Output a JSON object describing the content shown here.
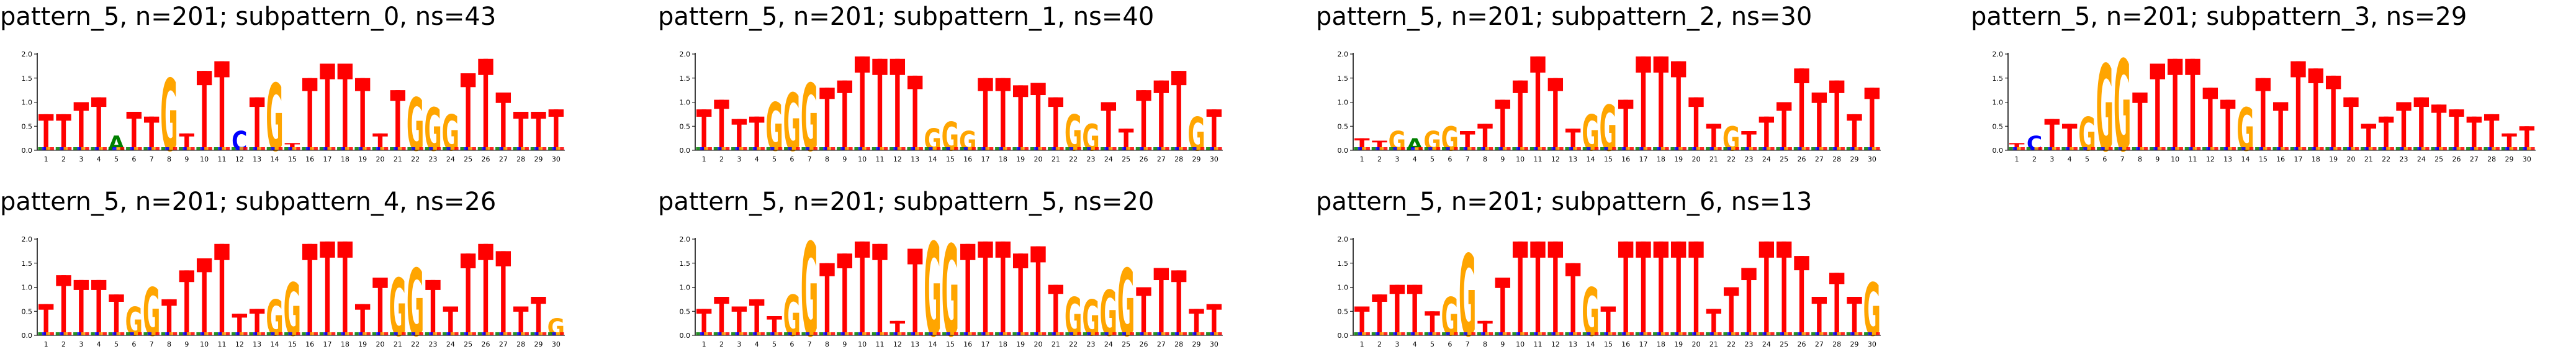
{
  "chart_data": [
    {
      "type": "sequence-logo",
      "title": "pattern_5, n=201; subpattern_0, ns=43",
      "yticks": [
        "0.0",
        "0.5",
        "1.0",
        "1.5",
        "2.0"
      ],
      "ylim": [
        0,
        2.0
      ],
      "positions": [
        "1",
        "2",
        "3",
        "4",
        "5",
        "6",
        "7",
        "8",
        "9",
        "10",
        "11",
        "12",
        "13",
        "14",
        "15",
        "16",
        "17",
        "18",
        "19",
        "20",
        "21",
        "22",
        "23",
        "24",
        "25",
        "26",
        "27",
        "28",
        "29",
        "30"
      ],
      "letters": [
        "T",
        "T",
        "T",
        "T",
        "A",
        "T",
        "T",
        "G",
        "T",
        "T",
        "T",
        "C",
        "T",
        "G",
        "T",
        "T",
        "T",
        "T",
        "T",
        "T",
        "T",
        "G",
        "G",
        "G",
        "T",
        "T",
        "T",
        "T",
        "T",
        "T"
      ],
      "values": [
        0.75,
        0.75,
        1.0,
        1.1,
        0.3,
        0.8,
        0.7,
        1.5,
        0.35,
        1.65,
        1.85,
        0.4,
        1.1,
        1.4,
        0.15,
        1.5,
        1.8,
        1.8,
        1.5,
        0.35,
        1.25,
        1.1,
        0.9,
        0.75,
        1.6,
        1.9,
        1.2,
        0.8,
        0.8,
        0.85
      ]
    },
    {
      "type": "sequence-logo",
      "title": "pattern_5, n=201; subpattern_1, ns=40",
      "yticks": [
        "0.0",
        "0.5",
        "1.0",
        "1.5",
        "2.0"
      ],
      "ylim": [
        0,
        2.0
      ],
      "positions": [
        "1",
        "2",
        "3",
        "4",
        "5",
        "6",
        "7",
        "8",
        "9",
        "10",
        "11",
        "12",
        "13",
        "14",
        "15",
        "16",
        "17",
        "18",
        "19",
        "20",
        "21",
        "22",
        "23",
        "24",
        "25",
        "26",
        "27",
        "28",
        "29",
        "30"
      ],
      "letters": [
        "T",
        "T",
        "T",
        "T",
        "G",
        "G",
        "G",
        "T",
        "T",
        "T",
        "T",
        "T",
        "T",
        "G",
        "G",
        "G",
        "T",
        "T",
        "T",
        "T",
        "T",
        "G",
        "G",
        "T",
        "T",
        "T",
        "T",
        "T",
        "G",
        "T"
      ],
      "values": [
        0.85,
        1.05,
        0.65,
        0.7,
        1.0,
        1.2,
        1.4,
        1.3,
        1.45,
        1.95,
        1.9,
        1.9,
        1.55,
        0.45,
        0.6,
        0.4,
        1.5,
        1.5,
        1.35,
        1.4,
        1.1,
        0.75,
        0.55,
        1.0,
        0.45,
        1.25,
        1.45,
        1.65,
        0.7,
        0.85
      ]
    },
    {
      "type": "sequence-logo",
      "title": "pattern_5, n=201; subpattern_2, ns=30",
      "yticks": [
        "0.0",
        "0.5",
        "1.0",
        "1.5",
        "2.0"
      ],
      "ylim": [
        0,
        2.0
      ],
      "positions": [
        "1",
        "2",
        "3",
        "4",
        "5",
        "6",
        "7",
        "8",
        "9",
        "10",
        "11",
        "12",
        "13",
        "14",
        "15",
        "16",
        "17",
        "18",
        "19",
        "20",
        "21",
        "22",
        "23",
        "24",
        "25",
        "26",
        "27",
        "28",
        "29",
        "30"
      ],
      "letters": [
        "T",
        "T",
        "G",
        "A",
        "G",
        "G",
        "T",
        "T",
        "T",
        "T",
        "T",
        "T",
        "T",
        "G",
        "G",
        "T",
        "T",
        "T",
        "T",
        "T",
        "T",
        "G",
        "T",
        "T",
        "T",
        "T",
        "T",
        "T",
        "T",
        "T"
      ],
      "values": [
        0.25,
        0.2,
        0.4,
        0.25,
        0.4,
        0.5,
        0.4,
        0.55,
        1.05,
        1.45,
        1.95,
        1.5,
        0.45,
        0.75,
        0.95,
        1.05,
        1.95,
        1.95,
        1.85,
        1.1,
        0.55,
        0.5,
        0.4,
        0.7,
        1.0,
        1.7,
        1.2,
        1.45,
        0.75,
        1.3
      ]
    },
    {
      "type": "sequence-logo",
      "title": "pattern_5, n=201; subpattern_3, ns=29",
      "yticks": [
        "0.0",
        "0.5",
        "1.0",
        "1.5",
        "2.0"
      ],
      "ylim": [
        0,
        2.0
      ],
      "positions": [
        "1",
        "2",
        "3",
        "4",
        "5",
        "6",
        "7",
        "8",
        "9",
        "10",
        "11",
        "12",
        "13",
        "14",
        "15",
        "16",
        "17",
        "18",
        "19",
        "20",
        "21",
        "22",
        "23",
        "24",
        "25",
        "26",
        "27",
        "28",
        "29",
        "30"
      ],
      "letters": [
        "T",
        "C",
        "T",
        "T",
        "G",
        "G",
        "G",
        "T",
        "T",
        "T",
        "T",
        "T",
        "T",
        "G",
        "T",
        "T",
        "T",
        "T",
        "T",
        "T",
        "T",
        "T",
        "T",
        "T",
        "T",
        "T",
        "T",
        "T",
        "T",
        "T"
      ],
      "values": [
        0.15,
        0.3,
        0.65,
        0.55,
        0.7,
        1.8,
        1.9,
        1.2,
        1.8,
        1.9,
        1.9,
        1.3,
        1.05,
        0.9,
        1.5,
        1.0,
        1.85,
        1.7,
        1.55,
        1.1,
        0.55,
        0.7,
        1.0,
        1.1,
        0.95,
        0.85,
        0.7,
        0.75,
        0.35,
        0.5
      ]
    },
    {
      "type": "sequence-logo",
      "title": "pattern_5, n=201; subpattern_4, ns=26",
      "yticks": [
        "0.0",
        "0.5",
        "1.0",
        "1.5",
        "2.0"
      ],
      "ylim": [
        0,
        2.0
      ],
      "positions": [
        "1",
        "2",
        "3",
        "4",
        "5",
        "6",
        "7",
        "8",
        "9",
        "10",
        "11",
        "12",
        "13",
        "14",
        "15",
        "16",
        "17",
        "18",
        "19",
        "20",
        "21",
        "22",
        "23",
        "24",
        "25",
        "26",
        "27",
        "28",
        "29",
        "30"
      ],
      "letters": [
        "T",
        "T",
        "T",
        "T",
        "T",
        "G",
        "G",
        "T",
        "T",
        "T",
        "T",
        "T",
        "T",
        "G",
        "G",
        "T",
        "T",
        "T",
        "T",
        "T",
        "G",
        "G",
        "T",
        "T",
        "T",
        "T",
        "T",
        "T",
        "T",
        "G"
      ],
      "values": [
        0.65,
        1.25,
        1.15,
        1.15,
        0.85,
        0.6,
        1.0,
        0.75,
        1.35,
        1.6,
        1.9,
        0.45,
        0.55,
        0.75,
        1.1,
        1.9,
        1.95,
        1.95,
        0.65,
        1.2,
        1.2,
        1.4,
        1.15,
        0.6,
        1.7,
        1.9,
        1.75,
        0.6,
        0.8,
        0.35
      ]
    },
    {
      "type": "sequence-logo",
      "title": "pattern_5, n=201; subpattern_5, ns=20",
      "yticks": [
        "0.0",
        "0.5",
        "1.0",
        "1.5",
        "2.0"
      ],
      "ylim": [
        0,
        2.0
      ],
      "positions": [
        "1",
        "2",
        "3",
        "4",
        "5",
        "6",
        "7",
        "8",
        "9",
        "10",
        "11",
        "12",
        "13",
        "14",
        "15",
        "16",
        "17",
        "18",
        "19",
        "20",
        "21",
        "22",
        "23",
        "24",
        "25",
        "26",
        "27",
        "28",
        "29",
        "30"
      ],
      "letters": [
        "T",
        "T",
        "T",
        "T",
        "T",
        "G",
        "G",
        "T",
        "T",
        "T",
        "T",
        "T",
        "T",
        "G",
        "G",
        "T",
        "T",
        "T",
        "T",
        "T",
        "T",
        "G",
        "G",
        "G",
        "G",
        "T",
        "T",
        "T",
        "T",
        "T"
      ],
      "values": [
        0.55,
        0.8,
        0.6,
        0.75,
        0.4,
        0.85,
        1.95,
        1.5,
        1.7,
        1.95,
        1.9,
        0.3,
        1.8,
        1.95,
        1.9,
        1.9,
        1.95,
        1.95,
        1.7,
        1.85,
        1.05,
        0.8,
        0.75,
        0.95,
        1.4,
        1.0,
        1.4,
        1.35,
        0.55,
        0.65
      ]
    },
    {
      "type": "sequence-logo",
      "title": "pattern_5, n=201; subpattern_6, ns=13",
      "yticks": [
        "0.0",
        "0.5",
        "1.0",
        "1.5",
        "2.0"
      ],
      "ylim": [
        0,
        2.0
      ],
      "positions": [
        "1",
        "2",
        "3",
        "4",
        "5",
        "6",
        "7",
        "8",
        "9",
        "10",
        "11",
        "12",
        "13",
        "14",
        "15",
        "16",
        "17",
        "18",
        "19",
        "20",
        "21",
        "22",
        "23",
        "24",
        "25",
        "26",
        "27",
        "28",
        "29",
        "30"
      ],
      "letters": [
        "T",
        "T",
        "T",
        "T",
        "T",
        "G",
        "G",
        "T",
        "T",
        "T",
        "T",
        "T",
        "T",
        "G",
        "T",
        "T",
        "T",
        "T",
        "T",
        "T",
        "T",
        "T",
        "T",
        "T",
        "T",
        "T",
        "T",
        "T",
        "T",
        "G"
      ],
      "values": [
        0.6,
        0.85,
        1.05,
        1.05,
        0.5,
        0.8,
        1.7,
        0.3,
        1.2,
        1.95,
        1.95,
        1.95,
        1.5,
        1.0,
        0.6,
        1.95,
        1.95,
        1.95,
        1.95,
        1.95,
        0.55,
        1.0,
        1.4,
        1.95,
        1.95,
        1.65,
        0.8,
        1.3,
        0.8,
        1.1
      ]
    }
  ],
  "colors": {
    "T": "#ff0000",
    "G": "#ffa500",
    "A": "#008000",
    "C": "#0000ff",
    "axis": "#000000",
    "text": "#000000"
  }
}
